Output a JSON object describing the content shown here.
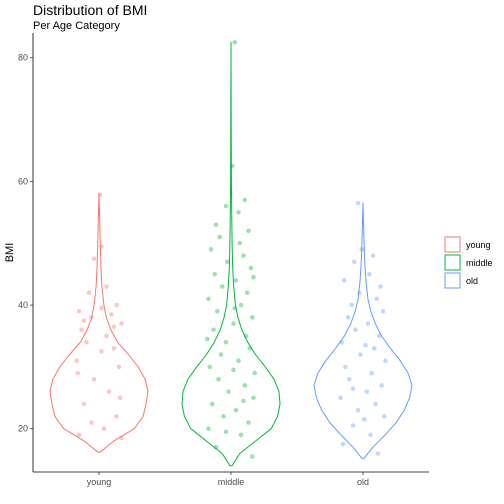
{
  "chart_data": {
    "type": "violin",
    "title": "Distribution of BMI",
    "subtitle": "Per Age Category",
    "xlabel": "",
    "ylabel": "BMI",
    "categories": [
      "young",
      "middle",
      "old"
    ],
    "colors": {
      "young": "#F8766D",
      "middle": "#00BA38",
      "old": "#619CFF"
    },
    "ylim": [
      13,
      84
    ],
    "yticks": [
      20,
      40,
      60,
      80
    ],
    "grid": false,
    "legend_position": "right",
    "legend": [
      {
        "label": "young",
        "color": "#F8766D"
      },
      {
        "label": "middle",
        "color": "#00BA38"
      },
      {
        "label": "old",
        "color": "#619CFF"
      }
    ],
    "series": [
      {
        "name": "young",
        "range": [
          16.2,
          58.0
        ],
        "density": [
          [
            16.2,
            0.02
          ],
          [
            18,
            0.3
          ],
          [
            20,
            0.72
          ],
          [
            22,
            0.9
          ],
          [
            24,
            0.96
          ],
          [
            26,
            1.0
          ],
          [
            28,
            0.94
          ],
          [
            30,
            0.8
          ],
          [
            32,
            0.6
          ],
          [
            34,
            0.38
          ],
          [
            36,
            0.24
          ],
          [
            38,
            0.15
          ],
          [
            40,
            0.1
          ],
          [
            43,
            0.06
          ],
          [
            46,
            0.04
          ],
          [
            50,
            0.025
          ],
          [
            54,
            0.015
          ],
          [
            58.0,
            0.0
          ]
        ],
        "points": [
          [
            19,
            -0.8
          ],
          [
            20,
            0.2
          ],
          [
            22,
            0.7
          ],
          [
            24,
            -0.6
          ],
          [
            26,
            0.4
          ],
          [
            28,
            -0.2
          ],
          [
            30,
            0.8
          ],
          [
            31,
            -0.9
          ],
          [
            33,
            0.6
          ],
          [
            34,
            -0.5
          ],
          [
            35,
            0.3
          ],
          [
            36,
            -0.7
          ],
          [
            37,
            0.9
          ],
          [
            38,
            -0.3
          ],
          [
            38.5,
            0.5
          ],
          [
            39,
            -0.8
          ],
          [
            39.5,
            0.1
          ],
          [
            40,
            0.7
          ],
          [
            42,
            -0.4
          ],
          [
            43,
            0.3
          ],
          [
            18.5,
            0.9
          ],
          [
            21,
            -0.3
          ],
          [
            25,
            0.85
          ],
          [
            29,
            -0.85
          ],
          [
            32.5,
            0.1
          ],
          [
            36.5,
            0.6
          ],
          [
            37.5,
            -0.6
          ],
          [
            47.5,
            -0.2
          ],
          [
            49.5,
            0.1
          ],
          [
            57.8,
            0.05
          ]
        ]
      },
      {
        "name": "middle",
        "range": [
          14.0,
          82.5
        ],
        "density": [
          [
            14.0,
            0.02
          ],
          [
            16,
            0.18
          ],
          [
            18,
            0.5
          ],
          [
            20,
            0.82
          ],
          [
            22,
            0.95
          ],
          [
            24,
            1.0
          ],
          [
            26,
            0.98
          ],
          [
            28,
            0.88
          ],
          [
            30,
            0.7
          ],
          [
            32,
            0.5
          ],
          [
            34,
            0.34
          ],
          [
            36,
            0.22
          ],
          [
            38,
            0.14
          ],
          [
            40,
            0.09
          ],
          [
            43,
            0.055
          ],
          [
            46,
            0.035
          ],
          [
            50,
            0.022
          ],
          [
            55,
            0.014
          ],
          [
            60,
            0.009
          ],
          [
            65,
            0.006
          ],
          [
            70,
            0.004
          ],
          [
            76,
            0.003
          ],
          [
            82.5,
            0.0
          ]
        ],
        "points": [
          [
            15.5,
            0.85
          ],
          [
            17,
            -0.6
          ],
          [
            19,
            0.4
          ],
          [
            20,
            -0.9
          ],
          [
            21,
            0.7
          ],
          [
            22,
            -0.3
          ],
          [
            23,
            0.2
          ],
          [
            24,
            -0.75
          ],
          [
            25,
            0.9
          ],
          [
            26,
            -0.1
          ],
          [
            27,
            0.55
          ],
          [
            28,
            -0.5
          ],
          [
            29,
            0.95
          ],
          [
            30,
            -0.85
          ],
          [
            31,
            0.3
          ],
          [
            32,
            -0.4
          ],
          [
            33,
            0.75
          ],
          [
            34,
            -0.2
          ],
          [
            35,
            0.6
          ],
          [
            36,
            -0.7
          ],
          [
            37,
            0.1
          ],
          [
            38,
            0.85
          ],
          [
            39,
            -0.55
          ],
          [
            40,
            0.4
          ],
          [
            41,
            -0.9
          ],
          [
            42,
            0.65
          ],
          [
            43,
            -0.35
          ],
          [
            44,
            0.2
          ],
          [
            45,
            -0.65
          ],
          [
            46,
            0.8
          ],
          [
            47,
            -0.15
          ],
          [
            48,
            0.5
          ],
          [
            49,
            -0.8
          ],
          [
            50,
            0.35
          ],
          [
            51,
            -0.45
          ],
          [
            52,
            0.7
          ],
          [
            53,
            -0.6
          ],
          [
            55,
            0.3
          ],
          [
            56,
            -0.2
          ],
          [
            57,
            0.55
          ],
          [
            62.5,
            0.05
          ],
          [
            82.5,
            0.15
          ],
          [
            19.5,
            -0.2
          ],
          [
            24.5,
            0.5
          ],
          [
            29.5,
            0.1
          ],
          [
            34.5,
            -0.95
          ],
          [
            39.5,
            0.15
          ],
          [
            44.5,
            0.9
          ]
        ]
      },
      {
        "name": "old",
        "range": [
          15.2,
          56.5
        ],
        "density": [
          [
            15.2,
            0.02
          ],
          [
            17,
            0.2
          ],
          [
            19,
            0.45
          ],
          [
            21,
            0.68
          ],
          [
            23,
            0.84
          ],
          [
            25,
            0.95
          ],
          [
            27,
            1.0
          ],
          [
            29,
            0.92
          ],
          [
            31,
            0.76
          ],
          [
            33,
            0.56
          ],
          [
            35,
            0.38
          ],
          [
            37,
            0.25
          ],
          [
            39,
            0.16
          ],
          [
            41,
            0.1
          ],
          [
            44,
            0.06
          ],
          [
            47,
            0.035
          ],
          [
            51,
            0.018
          ],
          [
            56.5,
            0.0
          ]
        ],
        "points": [
          [
            16,
            0.6
          ],
          [
            17.5,
            -0.8
          ],
          [
            19,
            0.3
          ],
          [
            20.5,
            -0.4
          ],
          [
            22,
            0.85
          ],
          [
            23,
            -0.2
          ],
          [
            24,
            0.5
          ],
          [
            25,
            -0.9
          ],
          [
            26,
            0.15
          ],
          [
            27,
            0.75
          ],
          [
            28,
            -0.55
          ],
          [
            29,
            0.35
          ],
          [
            30,
            -0.7
          ],
          [
            31,
            0.9
          ],
          [
            32,
            -0.1
          ],
          [
            33,
            0.45
          ],
          [
            34,
            -0.85
          ],
          [
            35,
            0.65
          ],
          [
            36,
            -0.3
          ],
          [
            37,
            0.2
          ],
          [
            38,
            -0.6
          ],
          [
            39,
            0.8
          ],
          [
            40,
            -0.45
          ],
          [
            41,
            0.55
          ],
          [
            42,
            -0.15
          ],
          [
            43,
            0.7
          ],
          [
            44,
            -0.75
          ],
          [
            45,
            0.25
          ],
          [
            47,
            -0.35
          ],
          [
            48,
            0.4
          ],
          [
            49,
            -0.05
          ],
          [
            56.5,
            -0.2
          ],
          [
            21.5,
            0.05
          ],
          [
            26.5,
            -0.4
          ],
          [
            33.5,
            0.1
          ]
        ]
      }
    ]
  }
}
